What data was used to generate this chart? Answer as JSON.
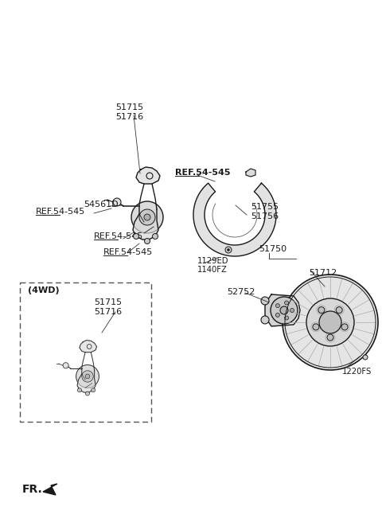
{
  "background_color": "#ffffff",
  "line_color": "#1a1a1a",
  "text_color": "#1a1a1a",
  "figsize": [
    4.8,
    6.56
  ],
  "dpi": 100,
  "labels": {
    "51715_top": "51715",
    "51716_top": "51716",
    "54561D": "54561D",
    "ref1": "REF.54-545",
    "ref2": "REF.54-545",
    "ref3": "REF.54-545",
    "ref_shield": "REF.54-545",
    "51755": "51755",
    "51756": "51756",
    "51750": "51750",
    "52752": "52752",
    "51712": "51712",
    "1129ED": "1129ED",
    "1140FZ": "1140FZ",
    "1220FS": "1220FS",
    "4wd": "(4WD)",
    "51715_4wd": "51715",
    "51716_4wd": "51716",
    "fr": "FR."
  }
}
